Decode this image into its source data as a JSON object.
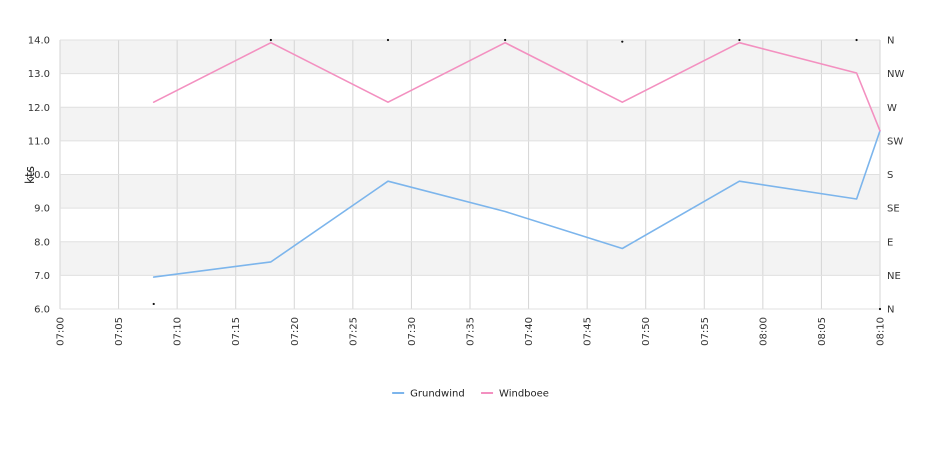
{
  "chart_data": {
    "type": "line",
    "title": "",
    "ylabel": "kts",
    "ylim": [
      6.0,
      14.0
    ],
    "yticks": [
      "6.0",
      "7.0",
      "8.0",
      "9.0",
      "10.0",
      "11.0",
      "12.0",
      "13.0",
      "14.0"
    ],
    "xlim": [
      "07:00",
      "08:10"
    ],
    "xticks": [
      "07:00",
      "07:05",
      "07:10",
      "07:15",
      "07:20",
      "07:25",
      "07:30",
      "07:35",
      "07:40",
      "07:45",
      "07:50",
      "07:55",
      "08:00",
      "08:05",
      "08:10"
    ],
    "y2ticks": [
      "N",
      "NE",
      "E",
      "SE",
      "S",
      "SW",
      "W",
      "NW",
      "N"
    ],
    "grid": true,
    "legend_position": "bottom",
    "series": [
      {
        "name": "Grundwind",
        "color": "#7cb5ec",
        "x": [
          "07:08",
          "07:18",
          "07:28",
          "07:38",
          "07:48",
          "07:58",
          "08:08",
          "08:10"
        ],
        "values": [
          6.95,
          7.4,
          9.8,
          8.9,
          7.8,
          9.8,
          9.27,
          11.3
        ]
      },
      {
        "name": "Windboee",
        "color": "#f390c0",
        "x": [
          "07:08",
          "07:18",
          "07:28",
          "07:38",
          "07:48",
          "07:58",
          "08:08",
          "08:10"
        ],
        "values": [
          12.15,
          13.92,
          12.15,
          13.92,
          12.15,
          13.92,
          13.02,
          11.3
        ]
      }
    ],
    "direction_markers": {
      "x": [
        "07:08",
        "07:18",
        "07:28",
        "07:38",
        "07:48",
        "07:58",
        "08:08",
        "08:10"
      ],
      "values": [
        6.15,
        14.0,
        14.0,
        14.0,
        13.95,
        14.0,
        14.0,
        6.0
      ]
    }
  }
}
